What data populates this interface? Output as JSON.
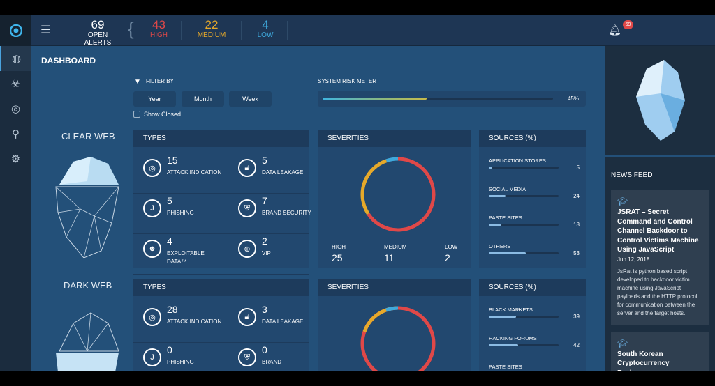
{
  "header": {
    "open_alerts": {
      "count": "69",
      "label": "OPEN ALERTS"
    },
    "high": {
      "count": "43",
      "label": "HIGH"
    },
    "medium": {
      "count": "22",
      "label": "MEDIUM"
    },
    "low": {
      "count": "4",
      "label": "LOW"
    },
    "notifications": "69"
  },
  "colors": {
    "high": "#e04848",
    "medium": "#e6a92a",
    "low": "#3fa9dc"
  },
  "sidebar": {
    "items": [
      {
        "icon": "fingerprint-icon",
        "active": true
      },
      {
        "icon": "biohazard-icon"
      },
      {
        "icon": "radar-icon"
      },
      {
        "icon": "search-eye-icon"
      },
      {
        "icon": "settings-icon"
      }
    ]
  },
  "page_title": "DASHBOARD",
  "filter": {
    "label": "FILTER BY",
    "buttons": [
      "Year",
      "Month",
      "Week"
    ],
    "show_closed": "Show Closed",
    "show_closed_checked": false
  },
  "risk_meter": {
    "label": "SYSTEM RISK METER",
    "value_pct": 45,
    "value_text": "45%"
  },
  "clear_web": {
    "title": "CLEAR WEB",
    "types": {
      "title": "TYPES",
      "items": [
        {
          "n": "15",
          "l": "ATTACK INDICATION",
          "icon": "target-icon"
        },
        {
          "n": "5",
          "l": "DATA LEAKAGE",
          "icon": "unlock-icon"
        },
        {
          "n": "5",
          "l": "PHISHING",
          "icon": "hook-icon"
        },
        {
          "n": "7",
          "l": "BRAND SECURITY",
          "icon": "shield-icon"
        },
        {
          "n": "4",
          "l": "EXPLOITABLE DATA™",
          "icon": "spy-icon"
        },
        {
          "n": "2",
          "l": "VIP",
          "icon": "vip-icon"
        }
      ]
    },
    "severities": {
      "title": "SEVERITIES",
      "items": [
        {
          "l": "HIGH",
          "n": "25",
          "v": 25
        },
        {
          "l": "MEDIUM",
          "n": "11",
          "v": 11
        },
        {
          "l": "LOW",
          "n": "2",
          "v": 2
        }
      ]
    },
    "sources": {
      "title": "SOURCES (%)",
      "items": [
        {
          "l": "APPLICATION STORES",
          "v": "5"
        },
        {
          "l": "SOCIAL MEDIA",
          "v": "24"
        },
        {
          "l": "PASTE SITES",
          "v": "18"
        },
        {
          "l": "OTHERS",
          "v": "53"
        }
      ]
    }
  },
  "dark_web": {
    "title": "DARK WEB",
    "types": {
      "title": "TYPES",
      "items": [
        {
          "n": "28",
          "l": "ATTACK INDICATION",
          "icon": "target-icon"
        },
        {
          "n": "3",
          "l": "DATA LEAKAGE",
          "icon": "unlock-icon"
        },
        {
          "n": "0",
          "l": "PHISHING",
          "icon": "hook-icon"
        },
        {
          "n": "0",
          "l": "BRAND",
          "icon": "shield-icon"
        }
      ]
    },
    "severities": {
      "title": "SEVERITIES"
    },
    "sources": {
      "title": "SOURCES (%)",
      "items": [
        {
          "l": "BLACK MARKETS",
          "v": "39"
        },
        {
          "l": "HACKING FORUMS",
          "v": "42"
        },
        {
          "l": "PASTE SITES",
          "v": ""
        }
      ]
    }
  },
  "news": {
    "title": "NEWS FEED",
    "items": [
      {
        "title": "JSRAT – Secret Command and Control Channel Backdoor to Control Victims Machine Using JavaScript",
        "date": "Jun 12, 2018",
        "body": "JsRat is python based script developed to backdoor victim machine using JavaScript payloads and the HTTP protocol for communication between the server and the target hosts."
      },
      {
        "title": "South Korean Cryptocurrency Exchange"
      }
    ]
  }
}
